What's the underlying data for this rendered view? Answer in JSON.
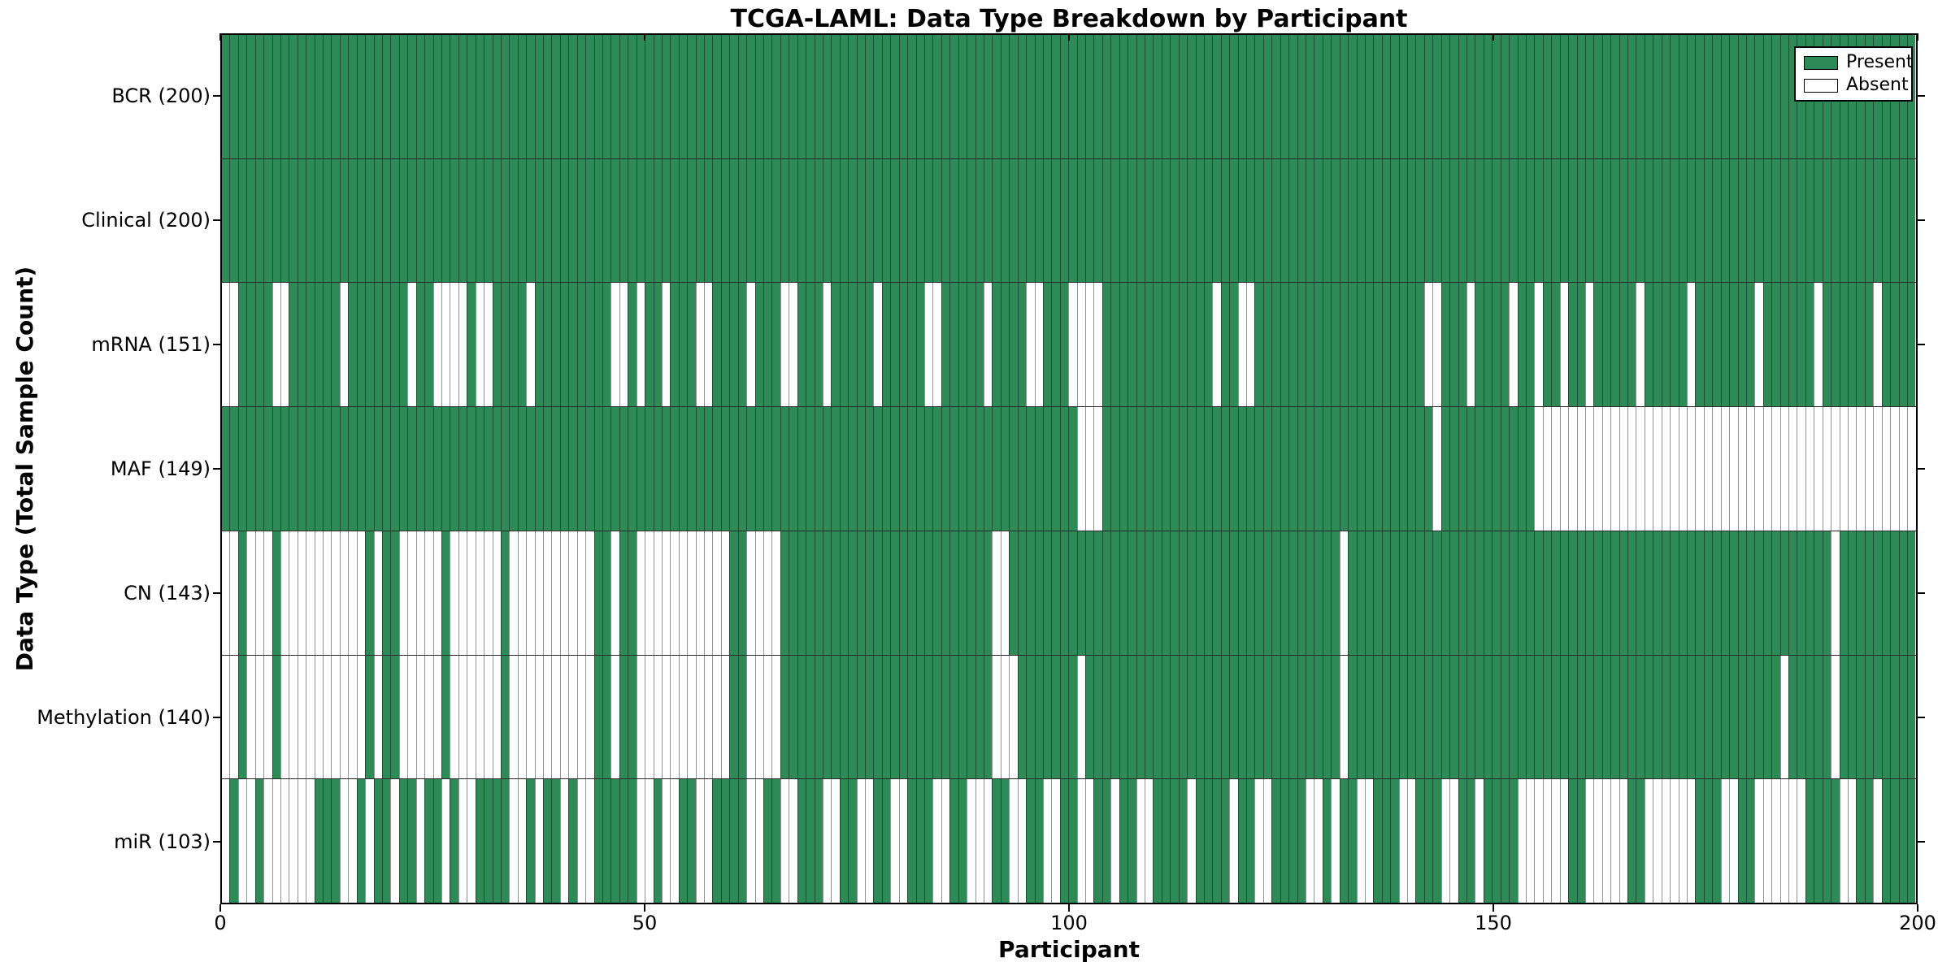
{
  "title": "TCGA-LAML: Data Type Breakdown by Participant",
  "xlabel": "Participant",
  "ylabel": "Data Type (Total Sample Count)",
  "legend": {
    "present_label": "Present",
    "absent_label": "Absent"
  },
  "colors": {
    "present": "#2e8b57",
    "absent": "#ffffff",
    "cell_edge": "rgba(0,0,0,0.42)",
    "spine": "#000000"
  },
  "chart_data": {
    "type": "heatmap",
    "title": "TCGA-LAML: Data Type Breakdown by Participant",
    "xlabel": "Participant",
    "ylabel": "Data Type (Total Sample Count)",
    "x_axis": {
      "range": [
        0,
        200
      ],
      "ticks": [
        0,
        50,
        100,
        150,
        200
      ],
      "n_participants": 200
    },
    "legend_entries": [
      {
        "label": "Present",
        "color": "#2e8b57"
      },
      {
        "label": "Absent",
        "color": "#ffffff"
      }
    ],
    "legend_position": "upper right",
    "grid": false,
    "value_encoding": {
      "1": "present",
      "0": "absent"
    },
    "rows": [
      {
        "label": "BCR (200)",
        "data_type": "BCR",
        "present_count": 200,
        "pattern": "11111111111111111111111111111111111111111111111111111111111111111111111111111111111111111111111111111111111111111111111111111111111111111111111111111111111111111111111111111111111111111111111111111111"
      },
      {
        "label": "Clinical (200)",
        "data_type": "Clinical",
        "present_count": 200,
        "pattern": "11111111111111111111111111111111111111111111111111111111111111111111111111111111111111111111111111111111111111111111111111111111111111111111111111111111111111111111111111111111111111111111111111111111"
      },
      {
        "label": "mRNA (151)",
        "data_type": "mRNA",
        "present_count": 151,
        "pattern": "00111100111111011111110110000100111101111111110010110111001111011100111011111011111001111101111001110000111111111111101100111111111111111111110011101111011011011011111011111011111110111111011111101111"
      },
      {
        "label": "MAF (149)",
        "data_type": "MAF",
        "present_count": 149,
        "pattern": "11111111111111111111111111111111111111111111111111111111111111111111111111111111111111111111111111111000111111111111111111111111111111111111111011111111111000000000000000000000000000000000000000000000"
      },
      {
        "label": "CN (143)",
        "data_type": "CN",
        "present_count": 143,
        "pattern": "00100010000000000101100000100000010000000000110110000000000011000011111111111111111111111110011111111111111111111111111111111111111101111111111111111111111111111111111111111111111111111111110111111111"
      },
      {
        "label": "Methylation (140)",
        "data_type": "Methylation",
        "present_count": 140,
        "pattern": "00100010000000000101100000100000010000000000110110000000000011000011111111111111111111111110001111111011111111111111111111111111111101111111111111111111111111111111111111111111111111110111110111111111"
      },
      {
        "label": "miR (103)",
        "data_type": "miR",
        "present_count": 103,
        "pattern": "01001000000111001011011011010011110010110100111110010011001111001100111001100110011100110001100110011001101100111101111011001111001011001110011100110111100000011000001100000011100110000001111001101111"
      }
    ]
  },
  "x_tick_labels": [
    "0",
    "50",
    "100",
    "150",
    "200"
  ]
}
